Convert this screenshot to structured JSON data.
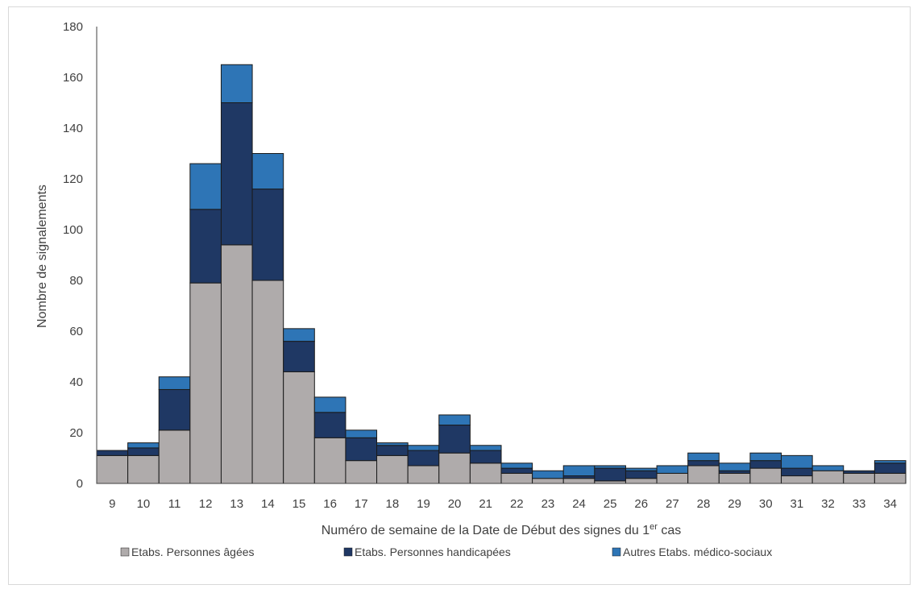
{
  "chart_data": {
    "type": "bar",
    "stacked": true,
    "categories": [
      "9",
      "10",
      "11",
      "12",
      "13",
      "14",
      "15",
      "16",
      "17",
      "18",
      "19",
      "20",
      "21",
      "22",
      "23",
      "24",
      "25",
      "26",
      "27",
      "28",
      "29",
      "30",
      "31",
      "32",
      "33",
      "34"
    ],
    "series": [
      {
        "name": "Etabs. Personnes âgées",
        "color": "#afabab",
        "values": [
          11,
          11,
          21,
          79,
          94,
          80,
          44,
          18,
          9,
          11,
          7,
          12,
          8,
          4,
          2,
          2,
          1,
          2,
          4,
          7,
          4,
          6,
          3,
          5,
          4,
          4
        ]
      },
      {
        "name": "Etabs. Personnes handicapées",
        "color": "#1f3864",
        "values": [
          2,
          3,
          16,
          29,
          56,
          36,
          12,
          10,
          9,
          4,
          6,
          11,
          5,
          2,
          0,
          1,
          5,
          3,
          0,
          2,
          1,
          3,
          3,
          0,
          1,
          4
        ]
      },
      {
        "name": "Autres Etabs. médico-sociaux",
        "color": "#2e75b6",
        "values": [
          0,
          2,
          5,
          18,
          15,
          14,
          5,
          6,
          3,
          1,
          2,
          4,
          2,
          2,
          3,
          4,
          1,
          1,
          3,
          3,
          3,
          3,
          5,
          2,
          0,
          1
        ]
      }
    ],
    "xlabel_main": "Numéro de semaine de la Date de Début des signes du 1",
    "xlabel_sup": "er",
    "xlabel_end": " cas",
    "ylabel": "Nombre de signalements",
    "ylim": [
      0,
      180
    ],
    "yticks": [
      0,
      20,
      40,
      60,
      80,
      100,
      120,
      140,
      160,
      180
    ],
    "grid": false,
    "legend_position": "bottom"
  }
}
